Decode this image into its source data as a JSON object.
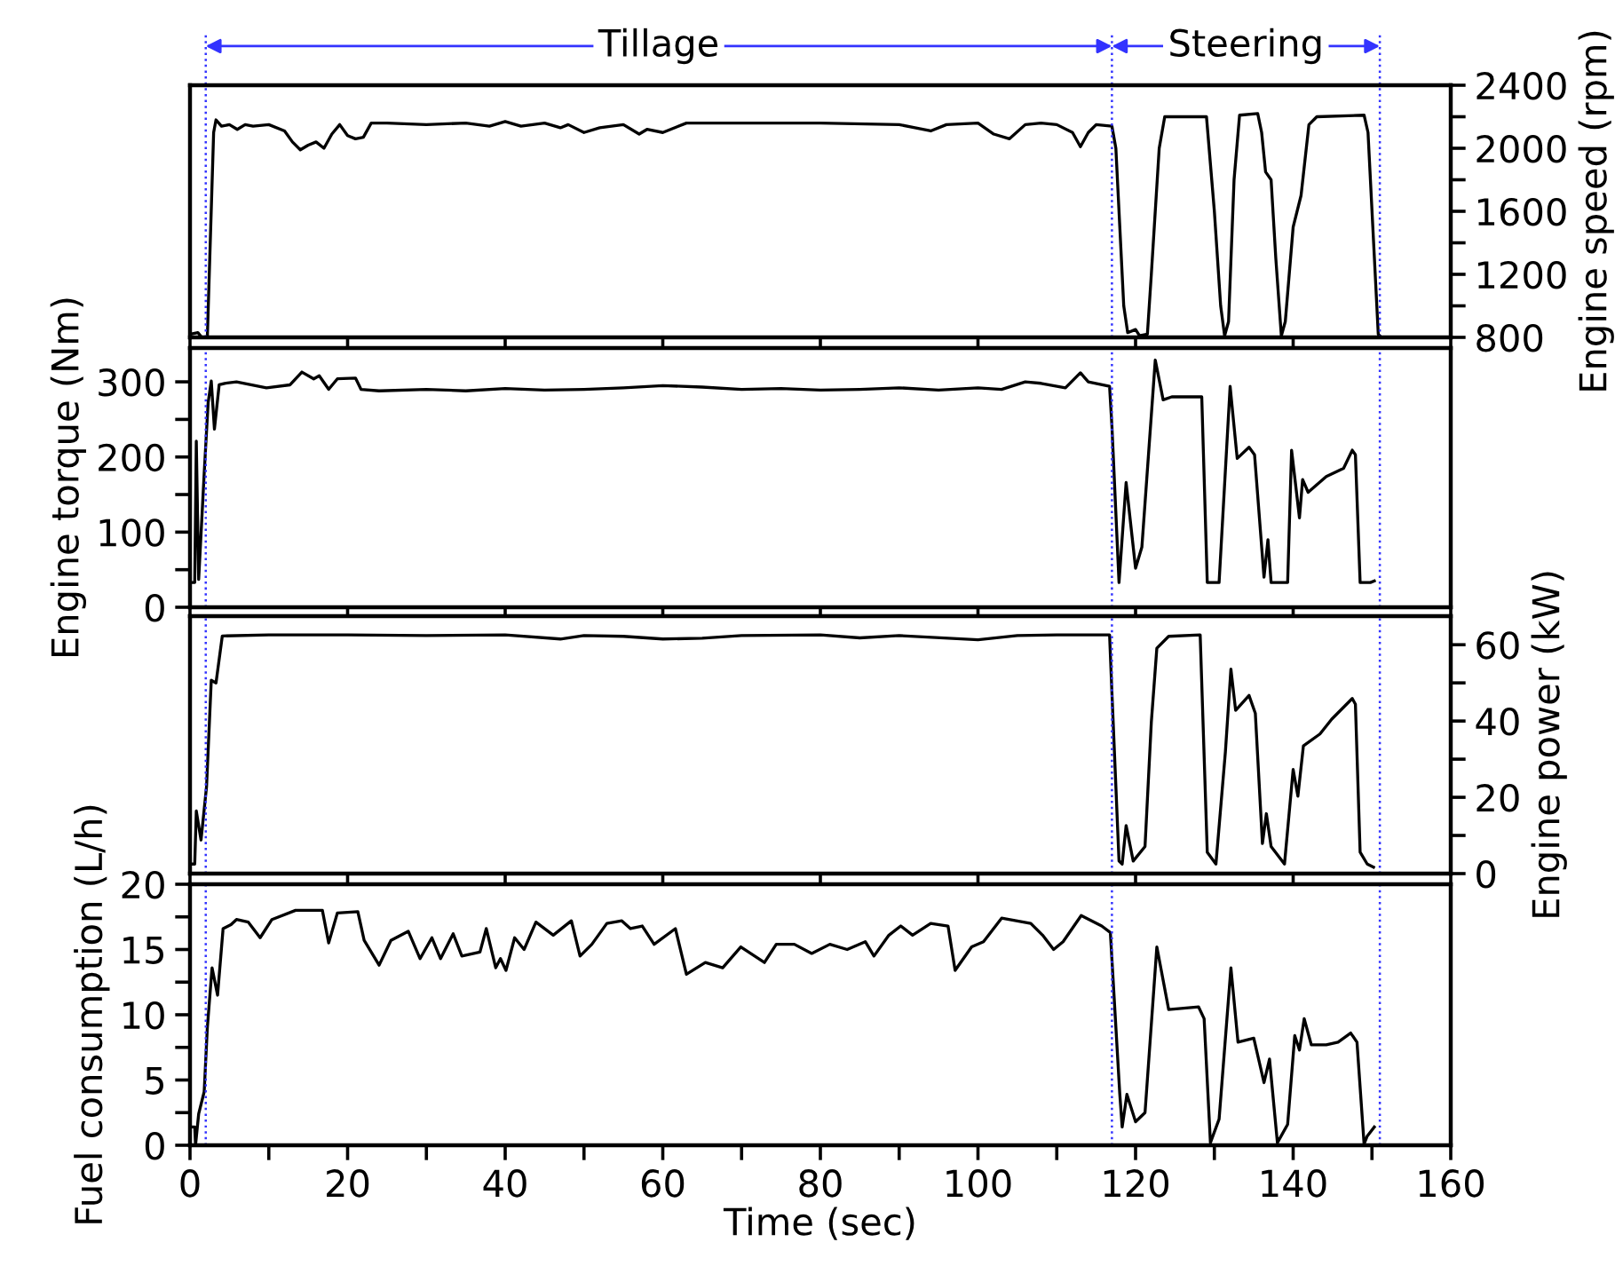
{
  "chart_data": [
    {
      "type": "line",
      "ylabel": "Engine speed (rpm)",
      "xlim": [
        0,
        160
      ],
      "xticks": [
        {
          "value": 0,
          "label": null
        },
        {
          "value": 20,
          "label": null
        },
        {
          "value": 40,
          "label": null
        },
        {
          "value": 60,
          "label": null
        },
        {
          "value": 80,
          "label": null
        },
        {
          "value": 100,
          "label": null
        },
        {
          "value": 120,
          "label": null
        },
        {
          "value": 140,
          "label": null
        },
        {
          "value": 160,
          "label": null
        }
      ],
      "ylim": [
        800,
        2400
      ],
      "yticks": [
        800,
        {
          "value": 1000,
          "label": null
        },
        1200,
        {
          "value": 1400,
          "label": null
        },
        1600,
        {
          "value": 1800,
          "label": null
        },
        2000,
        {
          "value": 2200,
          "label": null
        },
        2400
      ],
      "tick_labels": "y",
      "grid": false,
      "legend": false,
      "series": [
        {
          "color": "#000000",
          "x": [
            0,
            1,
            1.5,
            2.2,
            3,
            3.3,
            4,
            5,
            6,
            7,
            8,
            10,
            12,
            13,
            14,
            15,
            16,
            17,
            18,
            19,
            20,
            21,
            22,
            23,
            25,
            30,
            35,
            38,
            40,
            42,
            45,
            47,
            48,
            50,
            52,
            55,
            57,
            58,
            60,
            63,
            70,
            80,
            90,
            92,
            94,
            96,
            100,
            102,
            104,
            106,
            108,
            110,
            112,
            113,
            114,
            115,
            117,
            117.5,
            118.5,
            119,
            120,
            120.5,
            121.5,
            122,
            123,
            123.7,
            129,
            130,
            130.8,
            131.3,
            131.8,
            132.5,
            133.2,
            135.5,
            136,
            136.5,
            137.2,
            137.8,
            138.5,
            139,
            140,
            141,
            142,
            143,
            149,
            149.5,
            150.8,
            151
          ],
          "values": [
            820,
            830,
            800,
            800,
            2100,
            2180,
            2140,
            2150,
            2120,
            2150,
            2140,
            2150,
            2110,
            2040,
            1990,
            2020,
            2040,
            2000,
            2090,
            2150,
            2080,
            2060,
            2070,
            2160,
            2160,
            2150,
            2160,
            2140,
            2170,
            2140,
            2160,
            2130,
            2150,
            2100,
            2130,
            2150,
            2090,
            2120,
            2100,
            2160,
            2160,
            2160,
            2150,
            2130,
            2110,
            2150,
            2160,
            2090,
            2060,
            2150,
            2160,
            2150,
            2100,
            2010,
            2100,
            2150,
            2140,
            2000,
            1000,
            830,
            850,
            810,
            820,
            1200,
            2000,
            2200,
            2200,
            1600,
            1000,
            810,
            900,
            1800,
            2210,
            2220,
            2100,
            1850,
            1800,
            1300,
            810,
            900,
            1500,
            1700,
            2150,
            2200,
            2210,
            2100,
            820,
            810
          ]
        }
      ],
      "ref_lines": [
        {
          "axis": "x",
          "value": 2,
          "color": "#3333ff",
          "line_style": "dotted"
        },
        {
          "axis": "x",
          "value": 117,
          "color": "#3333ff",
          "line_style": "dotted"
        },
        {
          "axis": "x",
          "value": 151,
          "color": "#3333ff",
          "line_style": "dotted"
        }
      ],
      "annotations": [
        "Tillage",
        "Steering"
      ]
    },
    {
      "type": "line",
      "ylabel": "Engine torque (Nm)",
      "xlim": [
        0,
        160
      ],
      "xticks": [
        {
          "value": 0,
          "label": null
        },
        {
          "value": 20,
          "label": null
        },
        {
          "value": 40,
          "label": null
        },
        {
          "value": 60,
          "label": null
        },
        {
          "value": 80,
          "label": null
        },
        {
          "value": 100,
          "label": null
        },
        {
          "value": 120,
          "label": null
        },
        {
          "value": 140,
          "label": null
        },
        {
          "value": 160,
          "label": null
        }
      ],
      "ylim": [
        0,
        345
      ],
      "yticks": [
        0,
        {
          "value": 50,
          "label": null
        },
        100,
        {
          "value": 150,
          "label": null
        },
        200,
        {
          "value": 250,
          "label": null
        },
        300
      ],
      "tick_labels": "y",
      "grid": false,
      "legend": false,
      "series": [
        {
          "color": "#000000",
          "x": [
            0,
            0.6,
            0.8,
            1.1,
            1.8,
            2.3,
            2.7,
            3.1,
            3.7,
            4.4,
            5.9,
            9.7,
            12.7,
            14.2,
            15.7,
            16.4,
            17.6,
            18.7,
            21,
            21.7,
            24,
            30,
            35,
            40,
            45,
            50,
            55,
            60,
            65,
            70,
            75,
            80,
            85,
            90,
            95,
            100,
            103,
            106,
            108,
            111.1,
            113,
            114,
            116.7,
            117,
            117.9,
            118.8,
            120,
            120.8,
            122.5,
            123.5,
            124.6,
            128.4,
            129.1,
            130.6,
            132,
            132.9,
            134.4,
            135.1,
            136.3,
            136.8,
            137.2,
            139.3,
            139.8,
            140.8,
            141.2,
            141.9,
            144.2,
            146.4,
            147.5,
            147.9,
            148.5,
            149.8,
            150.3
          ],
          "values": [
            33,
            33,
            221,
            37,
            178,
            272,
            301,
            237,
            296,
            298,
            300,
            292,
            296,
            313,
            304,
            308,
            290,
            304,
            305,
            290,
            288,
            290,
            288,
            291,
            289,
            290,
            292,
            295,
            293,
            290,
            291,
            289,
            290,
            292,
            289,
            292,
            290,
            300,
            298,
            292,
            312,
            300,
            294,
            241,
            33,
            166,
            52,
            80,
            329,
            276,
            280,
            280,
            33,
            33,
            294,
            198,
            213,
            203,
            40,
            90,
            33,
            33,
            209,
            119,
            170,
            153,
            174,
            185,
            209,
            203,
            33,
            33,
            35
          ]
        }
      ],
      "ref_lines": [
        {
          "axis": "x",
          "value": 2,
          "color": "#3333ff",
          "line_style": "dotted"
        },
        {
          "axis": "x",
          "value": 117,
          "color": "#3333ff",
          "line_style": "dotted"
        },
        {
          "axis": "x",
          "value": 151,
          "color": "#3333ff",
          "line_style": "dotted"
        }
      ]
    },
    {
      "type": "line",
      "ylabel": "Engine power (kW)",
      "xlim": [
        0,
        160
      ],
      "xticks": [
        {
          "value": 0,
          "label": null
        },
        {
          "value": 20,
          "label": null
        },
        {
          "value": 40,
          "label": null
        },
        {
          "value": 60,
          "label": null
        },
        {
          "value": 80,
          "label": null
        },
        {
          "value": 100,
          "label": null
        },
        {
          "value": 120,
          "label": null
        },
        {
          "value": 140,
          "label": null
        },
        {
          "value": 160,
          "label": null
        }
      ],
      "ylim": [
        0,
        67.5
      ],
      "yticks": [
        0,
        {
          "value": 10,
          "label": null
        },
        20,
        {
          "value": 30,
          "label": null
        },
        40,
        {
          "value": 50,
          "label": null
        },
        60
      ],
      "tick_labels": "y",
      "grid": false,
      "legend": false,
      "series": [
        {
          "color": "#000000",
          "x": [
            0,
            0.6,
            0.8,
            1.4,
            2.1,
            2.7,
            3.3,
            4.1,
            10,
            20,
            30,
            40,
            47,
            50,
            55,
            60,
            65,
            70,
            80,
            85,
            90,
            100,
            105,
            110,
            116.7,
            117,
            117.9,
            118.3,
            118.8,
            119.7,
            121.2,
            122,
            122.7,
            124.2,
            128.2,
            129.1,
            130.2,
            131.4,
            132.1,
            132.7,
            134.4,
            135.2,
            136.1,
            136.6,
            137.2,
            138.9,
            140,
            140.6,
            141.3,
            143.4,
            144.9,
            147.5,
            147.9,
            148.5,
            149.4,
            150.2
          ],
          "values": [
            2.5,
            2.5,
            16.4,
            8.8,
            22.8,
            50.7,
            50,
            62.3,
            62.6,
            62.6,
            62.4,
            62.6,
            61.5,
            62.4,
            62.2,
            61.5,
            61.7,
            62.4,
            62.6,
            61.8,
            62.4,
            61.3,
            62.4,
            62.6,
            62.6,
            47.4,
            3.3,
            2.5,
            12.6,
            3.3,
            7.1,
            39.7,
            59.1,
            62.2,
            62.6,
            5.6,
            2.5,
            31.9,
            53.6,
            42.8,
            46.7,
            42,
            7.9,
            15.7,
            7.1,
            2.5,
            27.3,
            20.3,
            33.5,
            36.6,
            40.5,
            45.9,
            44.4,
            5.6,
            2.5,
            1.7
          ]
        }
      ],
      "ref_lines": [
        {
          "axis": "x",
          "value": 2,
          "color": "#3333ff",
          "line_style": "dotted"
        },
        {
          "axis": "x",
          "value": 117,
          "color": "#3333ff",
          "line_style": "dotted"
        },
        {
          "axis": "x",
          "value": 151,
          "color": "#3333ff",
          "line_style": "dotted"
        }
      ]
    },
    {
      "type": "line",
      "ylabel": "Fuel consumption (L/h)",
      "xlabel": "Time (sec)",
      "xlim": [
        0,
        160
      ],
      "xticks": [
        0,
        {
          "value": 10,
          "label": null
        },
        20,
        {
          "value": 30,
          "label": null
        },
        40,
        {
          "value": 50,
          "label": null
        },
        60,
        {
          "value": 70,
          "label": null
        },
        80,
        {
          "value": 90,
          "label": null
        },
        100,
        {
          "value": 110,
          "label": null
        },
        120,
        {
          "value": 130,
          "label": null
        },
        140,
        {
          "value": 150,
          "label": null
        },
        160
      ],
      "ylim": [
        0,
        20
      ],
      "yticks": [
        0,
        {
          "value": 2.5,
          "label": null
        },
        5,
        {
          "value": 7.5,
          "label": null
        },
        10,
        {
          "value": 12.5,
          "label": null
        },
        15,
        {
          "value": 17.5,
          "label": null
        },
        20
      ],
      "grid": false,
      "legend": false,
      "series": [
        {
          "color": "#000000",
          "x": [
            0,
            0.6,
            0.7,
            1.1,
            1.8,
            2.2,
            2.8,
            3.5,
            4.2,
            5.2,
            5.9,
            7.4,
            8.9,
            10.4,
            13.4,
            16.8,
            17.6,
            18.7,
            21.3,
            22.1,
            24,
            25.5,
            27.7,
            29.2,
            30.7,
            31.8,
            33.4,
            34.5,
            36.8,
            37.6,
            38.8,
            39.4,
            40.1,
            41.2,
            42.4,
            43.9,
            46.1,
            48.4,
            49.5,
            51,
            52.9,
            54.8,
            55.9,
            57.4,
            58.9,
            61.6,
            63,
            65.4,
            67.6,
            69.9,
            72.9,
            74.4,
            76.7,
            78.9,
            81.2,
            83.4,
            85.7,
            86.8,
            88.7,
            90.2,
            91.7,
            94,
            96.2,
            97.1,
            99.2,
            100.7,
            103,
            106.7,
            108.2,
            109.6,
            110.8,
            113.1,
            115.7,
            116.8,
            118,
            118.3,
            118.9,
            120,
            121.2,
            122.7,
            124.2,
            128,
            128.7,
            129.5,
            130.6,
            132.1,
            133,
            135,
            136.3,
            137,
            138,
            139.3,
            140.2,
            140.8,
            141.4,
            142.3,
            144.2,
            145.7,
            147.3,
            148.1,
            149,
            149.4,
            150.3
          ],
          "values": [
            1.4,
            1.4,
            0,
            2.4,
            4.1,
            9,
            13.6,
            11.5,
            16.6,
            16.9,
            17.3,
            17.1,
            15.9,
            17.3,
            18,
            18,
            15.5,
            17.8,
            17.9,
            15.7,
            13.8,
            15.7,
            16.4,
            14.3,
            15.9,
            14.3,
            16.2,
            14.5,
            14.8,
            16.6,
            13.6,
            14.3,
            13.4,
            15.9,
            15,
            17.1,
            16.1,
            17.2,
            14.5,
            15.4,
            17,
            17.2,
            16.6,
            16.8,
            15.4,
            16.6,
            13.1,
            14,
            13.6,
            15.2,
            14,
            15.4,
            15.4,
            14.7,
            15.4,
            15,
            15.6,
            14.5,
            16.1,
            16.8,
            16.1,
            17,
            16.8,
            13.4,
            15.2,
            15.6,
            17.4,
            17,
            16.1,
            15,
            15.6,
            17.6,
            16.8,
            16.3,
            3.9,
            1.4,
            3.9,
            1.8,
            2.5,
            15.2,
            10.4,
            10.6,
            9.7,
            0.2,
            2,
            13.6,
            7.9,
            8.2,
            4.8,
            6.6,
            0.2,
            1.6,
            8.4,
            7.3,
            9.7,
            7.7,
            7.7,
            7.9,
            8.6,
            7.9,
            0.1,
            0.7,
            1.4
          ]
        }
      ],
      "ref_lines": [
        {
          "axis": "x",
          "value": 2,
          "color": "#3333ff",
          "line_style": "dotted"
        },
        {
          "axis": "x",
          "value": 117,
          "color": "#3333ff",
          "line_style": "dotted"
        },
        {
          "axis": "x",
          "value": 151,
          "color": "#3333ff",
          "line_style": "dotted"
        }
      ]
    }
  ]
}
